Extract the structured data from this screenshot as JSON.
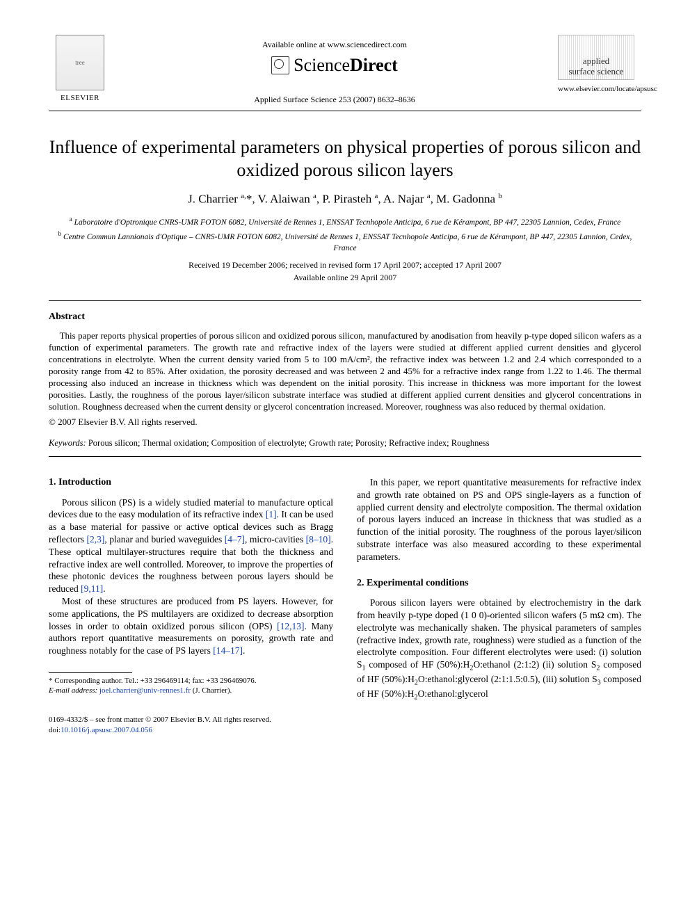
{
  "header": {
    "available_online": "Available online at www.sciencedirect.com",
    "sciencedirect_prefix": "Science",
    "sciencedirect_suffix": "Direct",
    "journal_reference": "Applied Surface Science 253 (2007) 8632–8636",
    "elsevier_label": "ELSEVIER",
    "cover_line1": "applied",
    "cover_line2": "surface science",
    "journal_url": "www.elsevier.com/locate/apsusc"
  },
  "article": {
    "title": "Influence of experimental parameters on physical properties of porous silicon and oxidized porous silicon layers",
    "authors_html": "J. Charrier <sup>a,</sup>*, V. Alaiwan <sup>a</sup>, P. Pirasteh <sup>a</sup>, A. Najar <sup>a</sup>, M. Gadonna <sup>b</sup>",
    "affiliations": [
      "<sup>a</sup> Laboratoire d'Optronique CNRS-UMR FOTON 6082, Université de Rennes 1, ENSSAT Tecnhopole Anticipa, 6 rue de Kérampont, BP 447, 22305 Lannion, Cedex, France",
      "<sup>b</sup> Centre Commun Lannionais d'Optique – CNRS-UMR FOTON 6082, Université de Rennes 1, ENSSAT Tecnhopole Anticipa, 6 rue de Kérampont, BP 447, 22305 Lannion, Cedex, France"
    ],
    "dates": "Received 19 December 2006; received in revised form 17 April 2007; accepted 17 April 2007",
    "online_date": "Available online 29 April 2007"
  },
  "abstract": {
    "heading": "Abstract",
    "body": "This paper reports physical properties of porous silicon and oxidized porous silicon, manufactured by anodisation from heavily p-type doped silicon wafers as a function of experimental parameters. The growth rate and refractive index of the layers were studied at different applied current densities and glycerol concentrations in electrolyte. When the current density varied from 5 to 100 mA/cm², the refractive index was between 1.2 and 2.4 which corresponded to a porosity range from 42 to 85%. After oxidation, the porosity decreased and was between 2 and 45% for a refractive index range from 1.22 to 1.46. The thermal processing also induced an increase in thickness which was dependent on the initial porosity. This increase in thickness was more important for the lowest porosities. Lastly, the roughness of the porous layer/silicon substrate interface was studied at different applied current densities and glycerol concentrations in solution. Roughness decreased when the current density or glycerol concentration increased. Moreover, roughness was also reduced by thermal oxidation.",
    "copyright": "© 2007 Elsevier B.V. All rights reserved."
  },
  "keywords": {
    "label": "Keywords:",
    "text": " Porous silicon; Thermal oxidation; Composition of electrolyte; Growth rate; Porosity; Refractive index; Roughness"
  },
  "sections": {
    "intro_heading": "1. Introduction",
    "intro_p1": "Porous silicon (PS) is a widely studied material to manufacture optical devices due to the easy modulation of its refractive index [1]. It can be used as a base material for passive or active optical devices such as Bragg reflectors [2,3], planar and buried waveguides [4–7], micro-cavities [8–10]. These optical multilayer-structures require that both the thickness and refractive index are well controlled. Moreover, to improve the properties of these photonic devices the roughness between porous layers should be reduced [9,11].",
    "intro_p2": "Most of these structures are produced from PS layers. However, for some applications, the PS multilayers are oxidized to decrease absorption losses in order to obtain oxidized porous silicon (OPS) [12,13]. Many authors report quantitative measurements on porosity, growth rate and roughness notably for the case of PS layers [14–17].",
    "intro_p3": "In this paper, we report quantitative measurements for refractive index and growth rate obtained on PS and OPS single-layers as a function of applied current density and electrolyte composition. The thermal oxidation of porous layers induced an increase in thickness that was studied as a function of the initial porosity. The roughness of the porous layer/silicon substrate interface was also measured according to these experimental parameters.",
    "exp_heading": "2. Experimental conditions",
    "exp_p1": "Porous silicon layers were obtained by electrochemistry in the dark from heavily p-type doped (1 0 0)-oriented silicon wafers (5 mΩ cm). The electrolyte was mechanically shaken. The physical parameters of samples (refractive index, growth rate, roughness) were studied as a function of the electrolyte composition. Four different electrolytes were used: (i) solution S₁ composed of HF (50%):H₂O:ethanol (2:1:2) (ii) solution S₂ composed of HF (50%):H₂O:ethanol:glycerol (2:1:1.5:0.5), (iii) solution S₃ composed of HF (50%):H₂O:ethanol:glycerol"
  },
  "footnotes": {
    "corr": "* Corresponding author. Tel.: +33 296469114; fax: +33 296469076.",
    "email_label": "E-mail address:",
    "email": " joel.charrier@univ-rennes1.fr ",
    "email_tail": "(J. Charrier)."
  },
  "bottom": {
    "front_matter": "0169-4332/$ – see front matter © 2007 Elsevier B.V. All rights reserved.",
    "doi_prefix": "doi:",
    "doi": "10.1016/j.apsusc.2007.04.056"
  },
  "refs": {
    "r1": "[1]",
    "r23": "[2,3]",
    "r47": "[4–7]",
    "r810": "[8–10]",
    "r911": "[9,11]",
    "r1213": "[12,13]",
    "r1417": "[14–17]"
  },
  "colors": {
    "link": "#1040c0",
    "text": "#000000",
    "background": "#ffffff"
  },
  "typography": {
    "title_fontsize_pt": 20,
    "authors_fontsize_pt": 13,
    "body_fontsize_pt": 10,
    "font_family": "Times New Roman"
  }
}
